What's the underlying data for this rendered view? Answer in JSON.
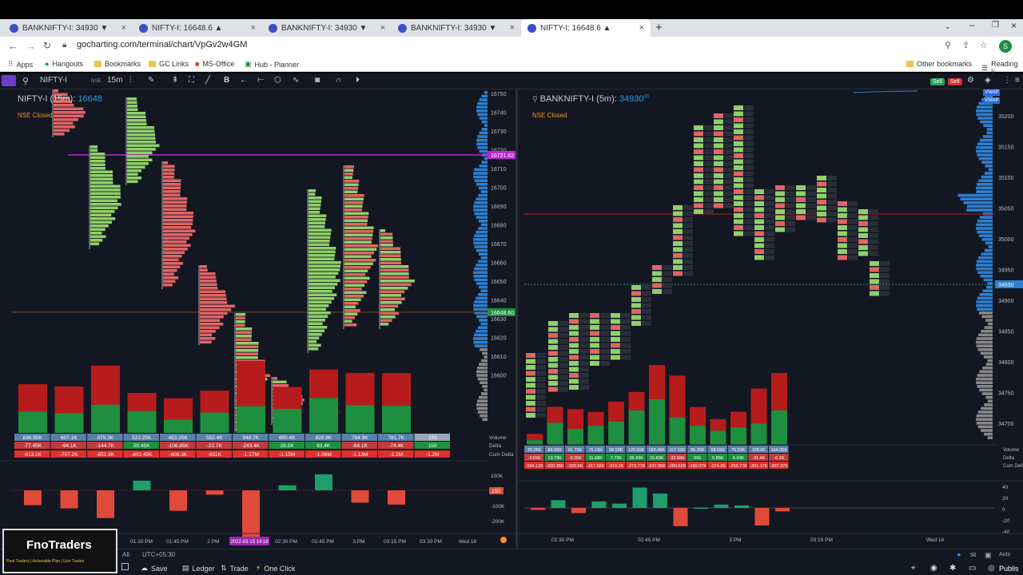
{
  "browser": {
    "tabs": [
      {
        "label": "BANKNIFTY-I: 34930 ▼"
      },
      {
        "label": "NIFTY-I: 16648.6 ▲"
      },
      {
        "label": "BANKNIFTY-I: 34930 ▼"
      },
      {
        "label": "BANKNIFTY-I: 34930 ▼"
      },
      {
        "label": "NIFTY-I: 16648.6 ▲"
      }
    ],
    "url": "gocharting.com/terminal/chart/VpGv2w4GM",
    "bookmarks": [
      "Apps",
      "Hangouts",
      "Bookmarks",
      "GC Links",
      "MS-Office",
      "Hub - Planner"
    ],
    "other_bookmarks": "Other bookmarks",
    "reading_list": "Reading li",
    "profile_initial": "S"
  },
  "toolbar": {
    "symbol": "NIFTY-I",
    "exchange": "NSE",
    "interval": "15m",
    "buy_label": "Sell",
    "sell_label": "Sell"
  },
  "left_chart": {
    "symbol": "NIFTY-I (15m):",
    "price": "16648",
    "status": "NSE Closed",
    "price_axis": [
      "16750",
      "16740",
      "16730",
      "16720",
      "16710",
      "16700",
      "16690",
      "16680",
      "16670",
      "16660",
      "16650",
      "16640",
      "16630",
      "16620",
      "16610",
      "16600"
    ],
    "marker_high": "16721.62",
    "marker_last": "16648.60",
    "table": {
      "rows": [
        "Volume",
        "Delta",
        "Cum Delta"
      ],
      "volume": [
        "636.95K",
        "607.1K",
        "879.3K",
        "522.25K",
        "453.25K",
        "552.4K",
        "940.7K",
        "600.4K",
        "828.8K",
        "784.9K",
        "781.7K",
        "150"
      ],
      "delta": [
        "-77.45K",
        "-94.1K",
        "-144.7K",
        "50.45K",
        "-106.85K",
        "-22.7K",
        "-243.4K",
        "26.5K",
        "83.4K",
        "-64.1K",
        "-74.4K",
        "150"
      ],
      "cum_delta": [
        "-613.1K",
        "-707.2K",
        "-851.9K",
        "-801.45K",
        "-908.3K",
        "-931K",
        "-1.17M",
        "-1.15M",
        "-1.06M",
        "-1.13M",
        "-1.2M",
        "-1.2M"
      ]
    },
    "delta_axis": [
      "100K",
      "0",
      "-100K",
      "-200K"
    ],
    "delta_marker": "150",
    "time_axis": [
      "01:30 PM",
      "01:45 PM",
      "2 PM",
      "2022-03-15 14:18",
      "02:30 PM",
      "02:45 PM",
      "3 PM",
      "03:15 PM",
      "03:30 PM",
      "Wed 16"
    ],
    "colors": {
      "green": "#1e8f3e",
      "red": "#b71c1c",
      "accent": "#2d9cdb"
    }
  },
  "right_chart": {
    "symbol": "BANKNIFTY-I (5m):",
    "price": "34930",
    "price_sup": "00",
    "status": "NSE Closed",
    "price_axis": [
      "35200",
      "35150",
      "35100",
      "35050",
      "35000",
      "34950",
      "34900",
      "34850",
      "34800",
      "34750",
      "34700"
    ],
    "marker_last": "34930",
    "vwap": [
      "VWAP",
      "VWAP"
    ],
    "table": {
      "rows": [
        "Volume",
        "Delta",
        "Cum Delta"
      ],
      "volume": [
        "25.05K",
        "86.95K",
        "81.75K",
        "75.15K",
        "98.58K",
        "120.83K",
        "182.48K",
        "157.93K",
        "86.35K",
        "58.65K",
        "75.53K",
        "128.6K",
        "164.05K"
      ],
      "delta": [
        "-3.65K",
        "13.78K",
        "-9.25K",
        "11.68K",
        "7.73K",
        "36.43K",
        "25.83K",
        "-32.68K",
        "550",
        "5.88K",
        "4.43K",
        "-31.4K",
        "-6.2K"
      ],
      "cum_delta": [
        "-334.12K",
        "-320.35K",
        "-329.6K",
        "-317.92K",
        "-310.2K",
        "-273.77K",
        "-247.95K",
        "-280.62K",
        "-280.07K",
        "-274.2K",
        "-269.77K",
        "-301.17K",
        "-307.37K"
      ]
    },
    "delta_axis": [
      "40",
      "20",
      "0",
      "-20",
      "-40"
    ],
    "time_axis": [
      "02:30 PM",
      "02:45 PM",
      "3 PM",
      "03:15 PM",
      "Wed 16"
    ]
  },
  "bottom": {
    "range": "All",
    "timezone": "UTC+05:30",
    "save": "Save",
    "ledger": "Ledger",
    "trade": "Trade",
    "one_click": "One Click",
    "publish": "Publis",
    "auto": "Auto"
  },
  "logo": {
    "title": "FnoTraders",
    "tagline": "Real Traders | Actionable Plan | Live Trades"
  }
}
